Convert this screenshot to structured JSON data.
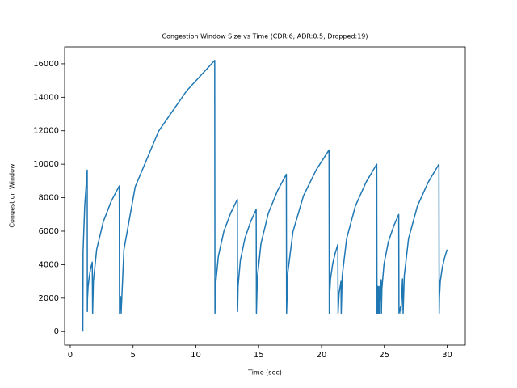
{
  "chart_data": {
    "type": "line",
    "title": "Congestion Window Size vs Time (CDR:6, ADR:0.5, Dropped:19)",
    "x_label": "Time (sec)",
    "y_label": "Congestion Window",
    "color": "#1f77b4",
    "x": [
      1.0,
      1.02,
      1.15,
      1.35,
      1.36,
      1.37,
      1.42,
      1.52,
      1.63,
      1.75,
      1.78,
      1.84,
      2.1,
      2.63,
      3.26,
      3.9,
      3.92,
      4.0,
      4.05,
      4.27,
      5.17,
      7.03,
      9.27,
      11.5,
      11.52,
      11.57,
      11.79,
      12.23,
      12.77,
      13.3,
      13.32,
      13.36,
      13.54,
      13.91,
      14.36,
      14.8,
      14.82,
      14.89,
      15.18,
      15.77,
      16.49,
      17.2,
      17.22,
      17.32,
      17.73,
      18.57,
      19.59,
      20.6,
      20.62,
      20.64,
      20.72,
      20.89,
      21.1,
      21.3,
      21.32,
      21.4,
      21.55,
      21.57,
      21.65,
      22.0,
      22.7,
      23.55,
      24.4,
      24.42,
      24.48,
      24.5,
      24.58,
      24.6,
      24.75,
      24.77,
      24.81,
      24.98,
      25.32,
      25.74,
      26.15,
      26.17,
      26.3,
      26.32,
      26.45,
      26.5,
      26.59,
      26.93,
      27.64,
      28.5,
      29.35,
      29.37,
      29.39,
      29.46,
      29.62,
      29.81,
      30.0
    ],
    "values": [
      0,
      4800,
      7500,
      9650,
      1200,
      1940,
      2680,
      3320,
      3800,
      4150,
      1100,
      3000,
      4900,
      6570,
      7790,
      8700,
      1100,
      2100,
      1100,
      4880,
      8650,
      11970,
      14390,
      16200,
      1100,
      2800,
      4500,
      6000,
      7080,
      7900,
      1200,
      2730,
      4250,
      5590,
      6570,
      7300,
      1100,
      3180,
      5250,
      7080,
      8400,
      9400,
      1100,
      3540,
      5980,
      8120,
      9680,
      10850,
      1100,
      2130,
      3150,
      4050,
      4710,
      5200,
      1100,
      2300,
      3000,
      1100,
      3330,
      5550,
      7510,
      8930,
      10000,
      1100,
      2700,
      1100,
      2700,
      1100,
      3100,
      1100,
      2580,
      4050,
      5350,
      6290,
      7000,
      1100,
      1500,
      1100,
      3150,
      1100,
      3330,
      5550,
      7510,
      8930,
      10000,
      1100,
      2050,
      3000,
      3840,
      4440,
      4900
    ],
    "xlim": [
      -0.45,
      31.45
    ],
    "ylim": [
      -810,
      17010
    ],
    "xticks": [
      0,
      5,
      10,
      15,
      20,
      25,
      30
    ],
    "yticks": [
      0,
      2000,
      4000,
      6000,
      8000,
      10000,
      12000,
      14000,
      16000
    ],
    "grid": false
  }
}
